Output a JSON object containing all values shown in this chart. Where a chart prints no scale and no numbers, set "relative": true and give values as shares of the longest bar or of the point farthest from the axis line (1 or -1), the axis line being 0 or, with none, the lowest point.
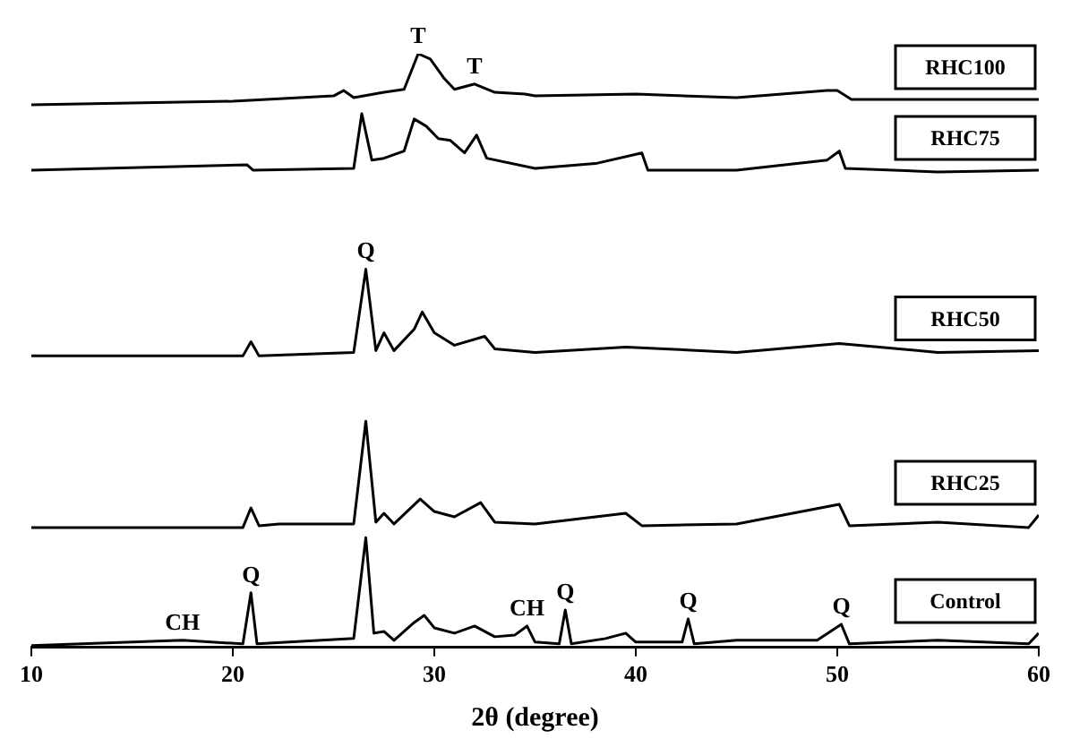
{
  "chart_data": {
    "type": "line",
    "relative": true,
    "xlabel": "2θ (degree)",
    "xlim": [
      10,
      60
    ],
    "xticks": [
      10,
      20,
      30,
      40,
      50,
      60
    ],
    "grid": false,
    "legend": false,
    "marker": "none",
    "line_style": "solid",
    "series": [
      {
        "name": "RHC100",
        "color": "#000000",
        "x": [
          10,
          20,
          25,
          25.5,
          26,
          27.5,
          28.5,
          29.2,
          29.8,
          30.5,
          31,
          32,
          33,
          34.5,
          35,
          40,
          45,
          49.5,
          50,
          50.7,
          55,
          60
        ],
        "values": [
          0.914,
          0.92,
          0.929,
          0.938,
          0.926,
          0.935,
          0.94,
          1,
          0.991,
          0.958,
          0.94,
          0.949,
          0.935,
          0.932,
          0.929,
          0.932,
          0.926,
          0.938,
          0.938,
          0.923,
          0.923,
          0.923
        ]
      },
      {
        "name": "RHC75",
        "color": "#000000",
        "x": [
          10,
          20.7,
          21,
          26,
          26.4,
          26.9,
          27.5,
          28.5,
          29,
          29.6,
          30.2,
          30.8,
          31.5,
          32.1,
          32.6,
          35,
          38,
          40.3,
          40.6,
          45,
          49.5,
          50.1,
          50.4,
          55,
          60
        ],
        "values": [
          0.804,
          0.813,
          0.804,
          0.807,
          0.899,
          0.821,
          0.824,
          0.836,
          0.89,
          0.878,
          0.857,
          0.854,
          0.833,
          0.863,
          0.824,
          0.807,
          0.815,
          0.833,
          0.804,
          0.804,
          0.821,
          0.836,
          0.807,
          0.801,
          0.804
        ]
      },
      {
        "name": "RHC50",
        "color": "#000000",
        "x": [
          10,
          20.5,
          20.9,
          21.3,
          26,
          26.6,
          27.1,
          27.5,
          28,
          29,
          29.4,
          30,
          31,
          32.5,
          33,
          35,
          39.5,
          45,
          50.1,
          55,
          60
        ],
        "values": [
          0.491,
          0.491,
          0.515,
          0.491,
          0.497,
          0.637,
          0.5,
          0.53,
          0.5,
          0.536,
          0.565,
          0.53,
          0.509,
          0.524,
          0.503,
          0.497,
          0.506,
          0.497,
          0.512,
          0.497,
          0.5
        ]
      },
      {
        "name": "RHC25",
        "color": "#000000",
        "x": [
          10,
          20.5,
          20.9,
          21.3,
          22.3,
          26,
          26.6,
          27.1,
          27.5,
          28,
          29.3,
          29.6,
          30,
          31,
          32.3,
          33,
          35,
          39.5,
          40.3,
          45,
          50.1,
          50.6,
          55,
          59.5,
          60
        ],
        "values": [
          0.202,
          0.202,
          0.235,
          0.205,
          0.208,
          0.208,
          0.381,
          0.211,
          0.226,
          0.208,
          0.25,
          0.241,
          0.229,
          0.22,
          0.244,
          0.211,
          0.208,
          0.226,
          0.205,
          0.208,
          0.241,
          0.205,
          0.211,
          0.202,
          0.223
        ]
      },
      {
        "name": "Control",
        "color": "#000000",
        "x": [
          10,
          17.5,
          20.5,
          20.9,
          21.2,
          26,
          26.6,
          27,
          27.5,
          28,
          29,
          29.5,
          30,
          31,
          32,
          33,
          34,
          34.6,
          35,
          36.2,
          36.5,
          36.8,
          38.5,
          39.5,
          40,
          42.3,
          42.6,
          42.9,
          45,
          49,
          50.2,
          50.6,
          55,
          59.5,
          60
        ],
        "values": [
          0.003,
          0.012,
          0.006,
          0.092,
          0.006,
          0.015,
          0.185,
          0.024,
          0.027,
          0.012,
          0.042,
          0.054,
          0.033,
          0.024,
          0.036,
          0.018,
          0.021,
          0.036,
          0.009,
          0.006,
          0.063,
          0.006,
          0.015,
          0.024,
          0.009,
          0.009,
          0.048,
          0.006,
          0.012,
          0.012,
          0.039,
          0.006,
          0.012,
          0.006,
          0.024
        ]
      }
    ],
    "annotations": [
      {
        "text": "T",
        "x": 29.2,
        "y": 1
      },
      {
        "text": "T",
        "x": 32,
        "y": 0.949
      },
      {
        "text": "Q",
        "x": 26.6,
        "y": 0.637
      },
      {
        "text": "CH",
        "x": 17.5,
        "y": 0.012
      },
      {
        "text": "Q",
        "x": 20.9,
        "y": 0.092
      },
      {
        "text": "CH",
        "x": 34.6,
        "y": 0.036
      },
      {
        "text": "Q",
        "x": 36.5,
        "y": 0.063
      },
      {
        "text": "Q",
        "x": 42.6,
        "y": 0.048
      },
      {
        "text": "Q",
        "x": 50.2,
        "y": 0.039
      }
    ]
  }
}
